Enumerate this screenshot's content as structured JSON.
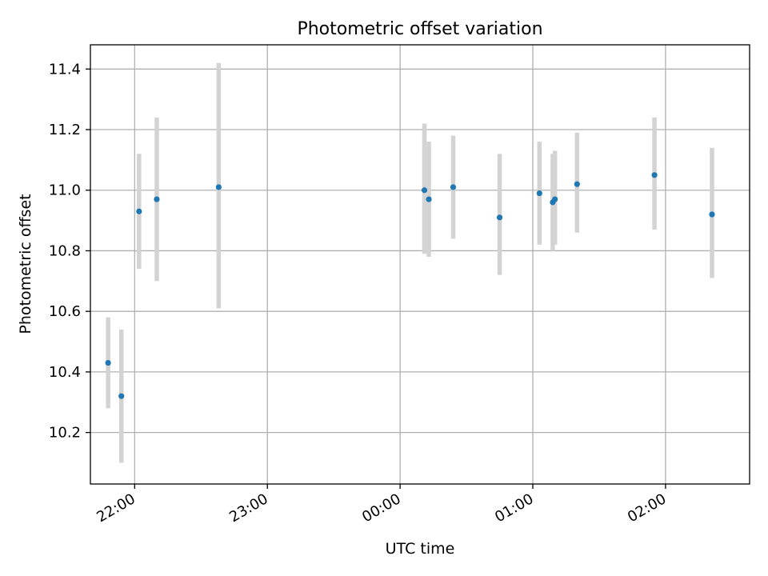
{
  "chart_data": {
    "type": "scatter",
    "title": "Photometric offset variation",
    "xlabel": "UTC time",
    "ylabel": "Photometric offset",
    "x_axis": {
      "kind": "time",
      "range": [
        "21:40",
        "02:38"
      ],
      "ticks": [
        "22:00",
        "23:00",
        "00:00",
        "01:00",
        "02:00"
      ]
    },
    "y_axis": {
      "range": [
        10.03,
        11.48
      ],
      "ticks": [
        "10.2",
        "10.4",
        "10.6",
        "10.8",
        "11.0",
        "11.2",
        "11.4"
      ]
    },
    "grid": true,
    "colors": {
      "point": "#1f77b4",
      "errorbar": "#d3d3d3",
      "grid": "#b0b0b0"
    },
    "points": [
      {
        "time": "21:48",
        "y": 10.43,
        "err_low": 10.28,
        "err_high": 10.58
      },
      {
        "time": "21:54",
        "y": 10.32,
        "err_low": 10.1,
        "err_high": 10.54
      },
      {
        "time": "22:02",
        "y": 10.93,
        "err_low": 10.74,
        "err_high": 11.12
      },
      {
        "time": "22:10",
        "y": 10.97,
        "err_low": 10.7,
        "err_high": 11.24
      },
      {
        "time": "22:38",
        "y": 11.01,
        "err_low": 10.61,
        "err_high": 11.42
      },
      {
        "time": "00:11",
        "y": 11.0,
        "err_low": 10.79,
        "err_high": 11.22
      },
      {
        "time": "00:13",
        "y": 10.97,
        "err_low": 10.78,
        "err_high": 11.16
      },
      {
        "time": "00:24",
        "y": 11.01,
        "err_low": 10.84,
        "err_high": 11.18
      },
      {
        "time": "00:45",
        "y": 10.91,
        "err_low": 10.72,
        "err_high": 11.12
      },
      {
        "time": "01:03",
        "y": 10.99,
        "err_low": 10.82,
        "err_high": 11.16
      },
      {
        "time": "01:09",
        "y": 10.96,
        "err_low": 10.8,
        "err_high": 11.12
      },
      {
        "time": "01:10",
        "y": 10.97,
        "err_low": 10.82,
        "err_high": 11.13
      },
      {
        "time": "01:20",
        "y": 11.02,
        "err_low": 10.86,
        "err_high": 11.19
      },
      {
        "time": "01:55",
        "y": 11.05,
        "err_low": 10.87,
        "err_high": 11.24
      },
      {
        "time": "02:21",
        "y": 10.92,
        "err_low": 10.71,
        "err_high": 11.14
      }
    ]
  }
}
